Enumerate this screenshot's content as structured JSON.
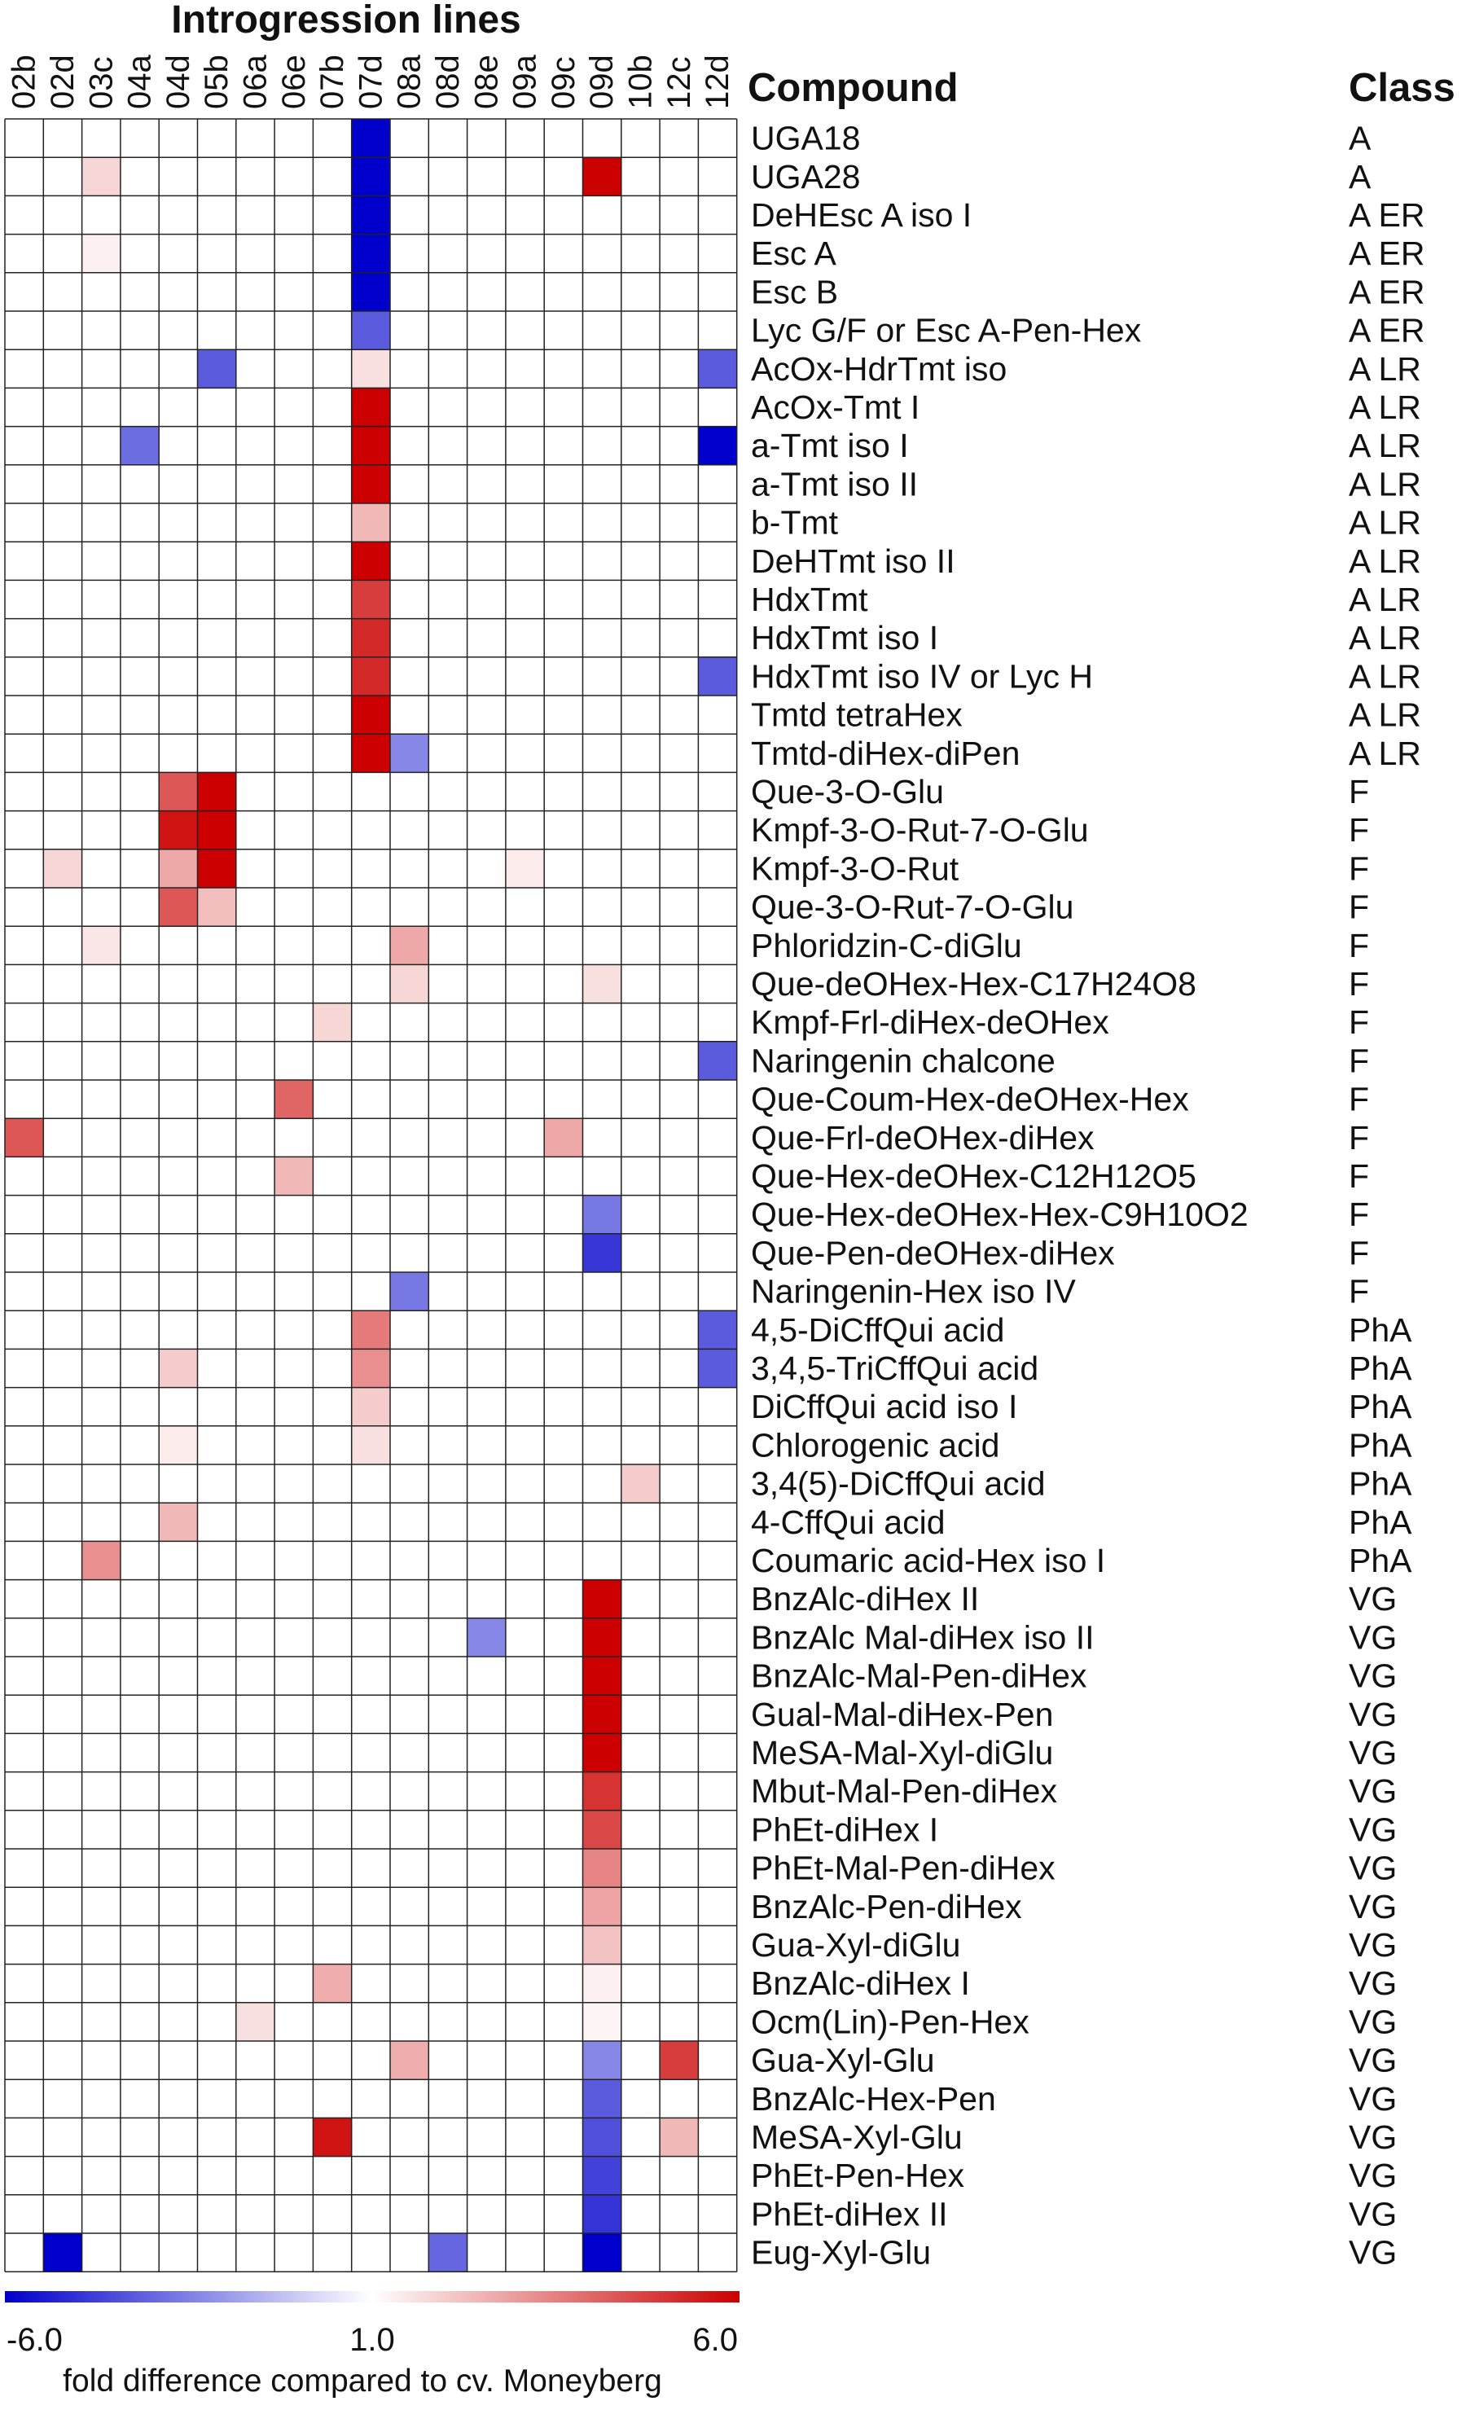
{
  "chart_data": {
    "type": "heatmap",
    "title": "Introgression lines",
    "compound_header": "Compound",
    "class_header": "Class",
    "columns": [
      "02b",
      "02d",
      "03c",
      "04a",
      "04d",
      "05b",
      "06a",
      "06e",
      "07b",
      "07d",
      "08a",
      "08d",
      "08e",
      "09a",
      "09c",
      "09d",
      "10b",
      "12c",
      "12d"
    ],
    "rows": [
      {
        "compound": "UGA18",
        "class": "A"
      },
      {
        "compound": "UGA28",
        "class": "A"
      },
      {
        "compound": "DeHEsc A iso I",
        "class": "A ER"
      },
      {
        "compound": "Esc A",
        "class": "A ER"
      },
      {
        "compound": "Esc B",
        "class": "A ER"
      },
      {
        "compound": "Lyc G/F or Esc A-Pen-Hex",
        "class": "A ER"
      },
      {
        "compound": "AcOx-HdrTmt iso",
        "class": "A LR"
      },
      {
        "compound": "AcOx-Tmt I",
        "class": "A LR"
      },
      {
        "compound": "a-Tmt iso I",
        "class": "A LR"
      },
      {
        "compound": "a-Tmt iso II",
        "class": "A LR"
      },
      {
        "compound": "b-Tmt",
        "class": "A LR"
      },
      {
        "compound": "DeHTmt iso  II",
        "class": "A LR"
      },
      {
        "compound": "HdxTmt",
        "class": "A LR"
      },
      {
        "compound": "HdxTmt iso I",
        "class": "A LR"
      },
      {
        "compound": "HdxTmt iso IV  or Lyc H",
        "class": "A LR"
      },
      {
        "compound": "Tmtd tetraHex",
        "class": "A LR"
      },
      {
        "compound": "Tmtd-diHex-diPen",
        "class": "A LR"
      },
      {
        "compound": "Que-3-O-Glu",
        "class": "F"
      },
      {
        "compound": "Kmpf-3-O-Rut-7-O-Glu",
        "class": "F"
      },
      {
        "compound": "Kmpf-3-O-Rut",
        "class": "F"
      },
      {
        "compound": "Que-3-O-Rut-7-O-Glu",
        "class": "F"
      },
      {
        "compound": "Phloridzin-C-diGlu",
        "class": "F"
      },
      {
        "compound": "Que-deOHex-Hex-C17H24O8",
        "class": "F"
      },
      {
        "compound": "Kmpf-Frl-diHex-deOHex",
        "class": "F"
      },
      {
        "compound": "Naringenin chalcone",
        "class": "F"
      },
      {
        "compound": "Que-Coum-Hex-deOHex-Hex",
        "class": "F"
      },
      {
        "compound": "Que-Frl-deOHex-diHex",
        "class": "F"
      },
      {
        "compound": "Que-Hex-deOHex-C12H12O5",
        "class": "F"
      },
      {
        "compound": "Que-Hex-deOHex-Hex-C9H10O2",
        "class": "F"
      },
      {
        "compound": "Que-Pen-deOHex-diHex",
        "class": "F"
      },
      {
        "compound": "Naringenin-Hex iso IV",
        "class": "F"
      },
      {
        "compound": "4,5-DiCffQui acid",
        "class": "PhA"
      },
      {
        "compound": "3,4,5-TriCffQui acid",
        "class": "PhA"
      },
      {
        "compound": "DiCffQui acid  iso I",
        "class": "PhA"
      },
      {
        "compound": "Chlorogenic acid",
        "class": "PhA"
      },
      {
        "compound": "3,4(5)-DiCffQui acid",
        "class": "PhA"
      },
      {
        "compound": "4-CffQui acid",
        "class": "PhA"
      },
      {
        "compound": "Coumaric acid-Hex iso I",
        "class": "PhA"
      },
      {
        "compound": "BnzAlc-diHex II",
        "class": "VG"
      },
      {
        "compound": "BnzAlc Mal-diHex iso II",
        "class": "VG"
      },
      {
        "compound": "BnzAlc-Mal-Pen-diHex",
        "class": "VG"
      },
      {
        "compound": "Gual-Mal-diHex-Pen",
        "class": "VG"
      },
      {
        "compound": "MeSA-Mal-Xyl-diGlu",
        "class": "VG"
      },
      {
        "compound": "Mbut-Mal-Pen-diHex",
        "class": "VG"
      },
      {
        "compound": "PhEt-diHex I",
        "class": "VG"
      },
      {
        "compound": "PhEt-Mal-Pen-diHex",
        "class": "VG"
      },
      {
        "compound": "BnzAlc-Pen-diHex",
        "class": "VG"
      },
      {
        "compound": "Gua-Xyl-diGlu",
        "class": "VG"
      },
      {
        "compound": "BnzAlc-diHex I",
        "class": "VG"
      },
      {
        "compound": "Ocm(Lin)-Pen-Hex",
        "class": "VG"
      },
      {
        "compound": "Gua-Xyl-Glu",
        "class": "VG"
      },
      {
        "compound": "BnzAlc-Hex-Pen",
        "class": "VG"
      },
      {
        "compound": "MeSA-Xyl-Glu",
        "class": "VG"
      },
      {
        "compound": "PhEt-Pen-Hex",
        "class": "VG"
      },
      {
        "compound": "PhEt-diHex II",
        "class": "VG"
      },
      {
        "compound": "Eug-Xyl-Glu",
        "class": "VG"
      }
    ],
    "values_note_scale": "signed fold difference; 1.0 = no change",
    "cells": [
      [
        0,
        9,
        -6.0
      ],
      [
        1,
        2,
        1.8
      ],
      [
        1,
        9,
        -6.0
      ],
      [
        1,
        15,
        6.0
      ],
      [
        2,
        9,
        -6.0
      ],
      [
        3,
        2,
        1.3
      ],
      [
        3,
        9,
        -6.0
      ],
      [
        4,
        9,
        -6.0
      ],
      [
        5,
        9,
        -3.5
      ],
      [
        6,
        5,
        -3.5
      ],
      [
        6,
        9,
        1.6
      ],
      [
        6,
        18,
        -3.5
      ],
      [
        7,
        9,
        6.0
      ],
      [
        8,
        3,
        -3.0
      ],
      [
        8,
        9,
        6.0
      ],
      [
        8,
        18,
        -6.0
      ],
      [
        9,
        9,
        6.0
      ],
      [
        10,
        9,
        2.4
      ],
      [
        11,
        9,
        6.0
      ],
      [
        12,
        9,
        4.8
      ],
      [
        13,
        9,
        5.2
      ],
      [
        14,
        9,
        5.2
      ],
      [
        14,
        18,
        -3.5
      ],
      [
        15,
        9,
        6.0
      ],
      [
        16,
        9,
        6.0
      ],
      [
        16,
        10,
        -2.3
      ],
      [
        17,
        4,
        4.3
      ],
      [
        17,
        5,
        6.0
      ],
      [
        18,
        4,
        5.6
      ],
      [
        18,
        5,
        6.0
      ],
      [
        19,
        1,
        1.8
      ],
      [
        19,
        4,
        2.7
      ],
      [
        19,
        5,
        6.0
      ],
      [
        19,
        13,
        1.4
      ],
      [
        20,
        4,
        4.3
      ],
      [
        20,
        5,
        2.3
      ],
      [
        21,
        2,
        1.5
      ],
      [
        21,
        10,
        2.7
      ],
      [
        22,
        10,
        1.8
      ],
      [
        22,
        15,
        1.6
      ],
      [
        23,
        8,
        1.8
      ],
      [
        24,
        18,
        -3.5
      ],
      [
        25,
        7,
        4.0
      ],
      [
        26,
        0,
        4.3
      ],
      [
        26,
        14,
        2.7
      ],
      [
        27,
        7,
        2.4
      ],
      [
        28,
        15,
        -2.7
      ],
      [
        29,
        15,
        -4.5
      ],
      [
        30,
        10,
        -2.7
      ],
      [
        31,
        9,
        3.6
      ],
      [
        31,
        18,
        -3.5
      ],
      [
        32,
        4,
        2.0
      ],
      [
        32,
        9,
        3.2
      ],
      [
        32,
        18,
        -3.5
      ],
      [
        33,
        9,
        2.0
      ],
      [
        34,
        4,
        1.4
      ],
      [
        34,
        9,
        1.6
      ],
      [
        35,
        16,
        2.0
      ],
      [
        36,
        4,
        2.4
      ],
      [
        37,
        2,
        3.2
      ],
      [
        38,
        15,
        6.0
      ],
      [
        39,
        12,
        -2.3
      ],
      [
        39,
        15,
        6.0
      ],
      [
        40,
        15,
        6.0
      ],
      [
        41,
        15,
        6.0
      ],
      [
        42,
        15,
        6.0
      ],
      [
        43,
        15,
        5.0
      ],
      [
        44,
        15,
        4.6
      ],
      [
        45,
        15,
        3.4
      ],
      [
        46,
        15,
        2.8
      ],
      [
        47,
        15,
        2.2
      ],
      [
        48,
        8,
        2.6
      ],
      [
        48,
        15,
        1.3
      ],
      [
        49,
        6,
        1.6
      ],
      [
        49,
        15,
        1.2
      ],
      [
        50,
        10,
        2.6
      ],
      [
        50,
        15,
        -2.3
      ],
      [
        50,
        17,
        4.8
      ],
      [
        51,
        15,
        -3.5
      ],
      [
        52,
        8,
        5.6
      ],
      [
        52,
        15,
        -3.8
      ],
      [
        52,
        17,
        2.4
      ],
      [
        53,
        15,
        -4.2
      ],
      [
        54,
        15,
        -4.6
      ],
      [
        55,
        1,
        -6.0
      ],
      [
        55,
        11,
        -3.2
      ],
      [
        55,
        15,
        -6.0
      ]
    ],
    "colorbar": {
      "min": -6.0,
      "mid": 1.0,
      "max": 6.0,
      "min_label": "-6.0",
      "mid_label": "1.0",
      "max_label": "6.0",
      "low_color": "#0000cc",
      "mid_color": "#ffffff",
      "high_color": "#cc0000",
      "label": "fold difference compared to cv. Moneyberg"
    }
  }
}
